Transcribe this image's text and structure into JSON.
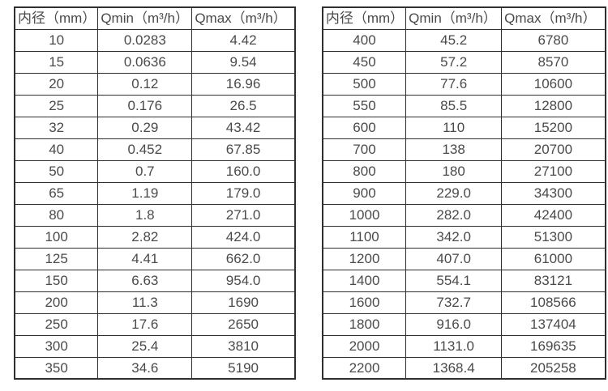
{
  "colors": {
    "border": "#2f2f2f",
    "text": "#4a4a4a",
    "background": "#ffffff"
  },
  "tables": [
    {
      "name": "flow-table-small-diameters",
      "headers": [
        "内径（mm）",
        "Qmin（m³/h）",
        "Qmax（m³/h）"
      ],
      "rows": [
        [
          "10",
          "0.0283",
          "4.42"
        ],
        [
          "15",
          "0.0636",
          "9.54"
        ],
        [
          "20",
          "0.12",
          "16.96"
        ],
        [
          "25",
          "0.176",
          "26.5"
        ],
        [
          "32",
          "0.29",
          "43.42"
        ],
        [
          "40",
          "0.452",
          "67.85"
        ],
        [
          "50",
          "0.7",
          "160.0"
        ],
        [
          "65",
          "1.19",
          "179.0"
        ],
        [
          "80",
          "1.8",
          "271.0"
        ],
        [
          "100",
          "2.82",
          "424.0"
        ],
        [
          "125",
          "4.41",
          "662.0"
        ],
        [
          "150",
          "6.63",
          "954.0"
        ],
        [
          "200",
          "11.3",
          "1690"
        ],
        [
          "250",
          "17.6",
          "2650"
        ],
        [
          "300",
          "25.4",
          "3810"
        ],
        [
          "350",
          "34.6",
          "5190"
        ]
      ]
    },
    {
      "name": "flow-table-large-diameters",
      "headers": [
        "内径（mm）",
        "Qmin（m³/h）",
        "Qmax（m³/h）"
      ],
      "rows": [
        [
          "400",
          "45.2",
          "6780"
        ],
        [
          "450",
          "57.2",
          "8570"
        ],
        [
          "500",
          "77.6",
          "10600"
        ],
        [
          "550",
          "85.5",
          "12800"
        ],
        [
          "600",
          "110",
          "15200"
        ],
        [
          "700",
          "138",
          "20700"
        ],
        [
          "800",
          "180",
          "27100"
        ],
        [
          "900",
          "229.0",
          "34300"
        ],
        [
          "1000",
          "282.0",
          "42400"
        ],
        [
          "1100",
          "342.0",
          "51300"
        ],
        [
          "1200",
          "407.0",
          "61000"
        ],
        [
          "1400",
          "554.1",
          "83121"
        ],
        [
          "1600",
          "732.7",
          "108566"
        ],
        [
          "1800",
          "916.0",
          "137404"
        ],
        [
          "2000",
          "1131.0",
          "169635"
        ],
        [
          "2200",
          "1368.4",
          "205258"
        ]
      ]
    }
  ],
  "chart_data": {
    "type": "table",
    "title": "",
    "tables": [
      {
        "columns": [
          "内径（mm）",
          "Qmin（m³/h）",
          "Qmax（m³/h）"
        ],
        "diameters_mm": [
          10,
          15,
          20,
          25,
          32,
          40,
          50,
          65,
          80,
          100,
          125,
          150,
          200,
          250,
          300,
          350
        ],
        "qmin_m3h": [
          0.0283,
          0.0636,
          0.12,
          0.176,
          0.29,
          0.452,
          0.7,
          1.19,
          1.8,
          2.82,
          4.41,
          6.63,
          11.3,
          17.6,
          25.4,
          34.6
        ],
        "qmax_m3h": [
          4.42,
          9.54,
          16.96,
          26.5,
          43.42,
          67.85,
          160.0,
          179.0,
          271.0,
          424.0,
          662.0,
          954.0,
          1690,
          2650,
          3810,
          5190
        ]
      },
      {
        "columns": [
          "内径（mm）",
          "Qmin（m³/h）",
          "Qmax（m³/h）"
        ],
        "diameters_mm": [
          400,
          450,
          500,
          550,
          600,
          700,
          800,
          900,
          1000,
          1100,
          1200,
          1400,
          1600,
          1800,
          2000,
          2200
        ],
        "qmin_m3h": [
          45.2,
          57.2,
          77.6,
          85.5,
          110,
          138,
          180,
          229.0,
          282.0,
          342.0,
          407.0,
          554.1,
          732.7,
          916.0,
          1131.0,
          1368.4
        ],
        "qmax_m3h": [
          6780,
          8570,
          10600,
          12800,
          15200,
          20700,
          27100,
          34300,
          42400,
          51300,
          61000,
          83121,
          108566,
          137404,
          169635,
          205258
        ]
      }
    ]
  }
}
